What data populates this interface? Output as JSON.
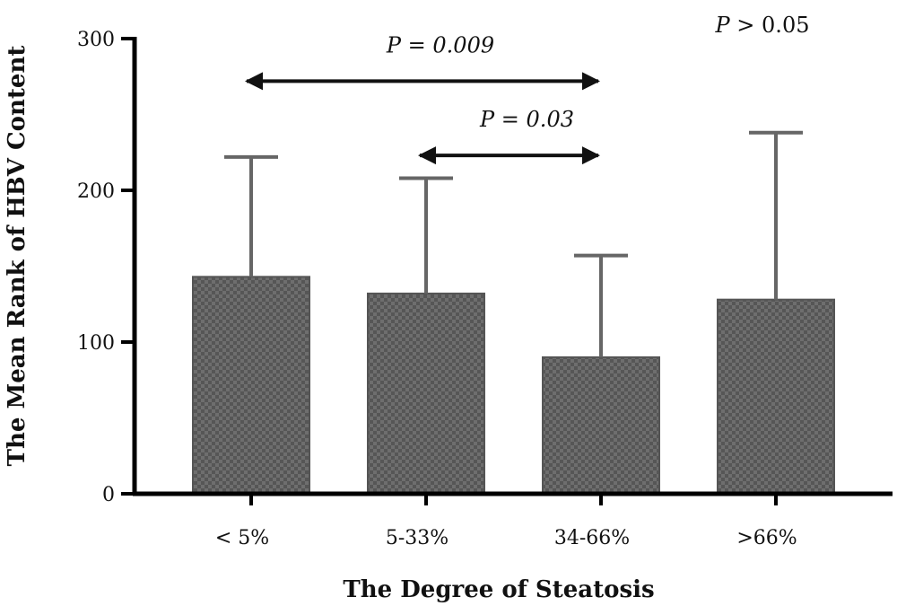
{
  "chart_data": {
    "type": "bar",
    "categories": [
      "< 5%",
      "5-33%",
      "34-66%",
      ">66%"
    ],
    "values": [
      143,
      132,
      90,
      128
    ],
    "error_upper": [
      222,
      208,
      157,
      238
    ],
    "xlabel": "The Degree of Steatosis",
    "ylabel": "The Mean Rank of HBV Content",
    "ylim": [
      0,
      300
    ],
    "yticks": [
      0,
      100,
      200,
      300
    ],
    "bar_pattern": "checkered gray",
    "annotations": [
      {
        "type": "double-arrow",
        "from": "< 5%",
        "to": "34-66%",
        "y": 272,
        "label_italic": "P",
        "label_rest": " = 0.009",
        "label_style": "italic"
      },
      {
        "type": "double-arrow",
        "from": "5-33%",
        "to": "34-66%",
        "y": 223,
        "label_italic": "P",
        "label_rest": " = 0.03",
        "label_style": "italic"
      },
      {
        "type": "text",
        "label_italic": "P",
        "label_rest": " > 0.05",
        "label_style": "mixed"
      }
    ]
  }
}
